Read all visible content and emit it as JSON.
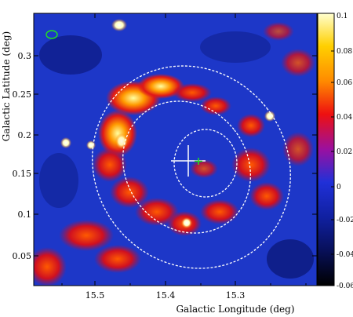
{
  "figure": {
    "x_axis_title": "Galactic Longitude (deg)",
    "y_axis_title": "Galactic Latitude (deg)",
    "x_ticks": [
      "15.5",
      "15.4",
      "15.3"
    ],
    "y_ticks": [
      "0.05",
      "0.1",
      "0.15",
      "0.2",
      "0.25",
      "0.3"
    ],
    "colorbar_ticks": [
      "0.1",
      "0.08",
      "0.06",
      "0.04",
      "0.02",
      "0",
      "-0.02",
      "-0.04",
      "-0.06"
    ],
    "colors": {
      "background_map": "#1d37c8",
      "contour_dashes": "#ffffff",
      "beam_ellipse": "#22dd22",
      "marker_cross_white": "#ffffff",
      "marker_cross_green": "#22dd22"
    }
  }
}
